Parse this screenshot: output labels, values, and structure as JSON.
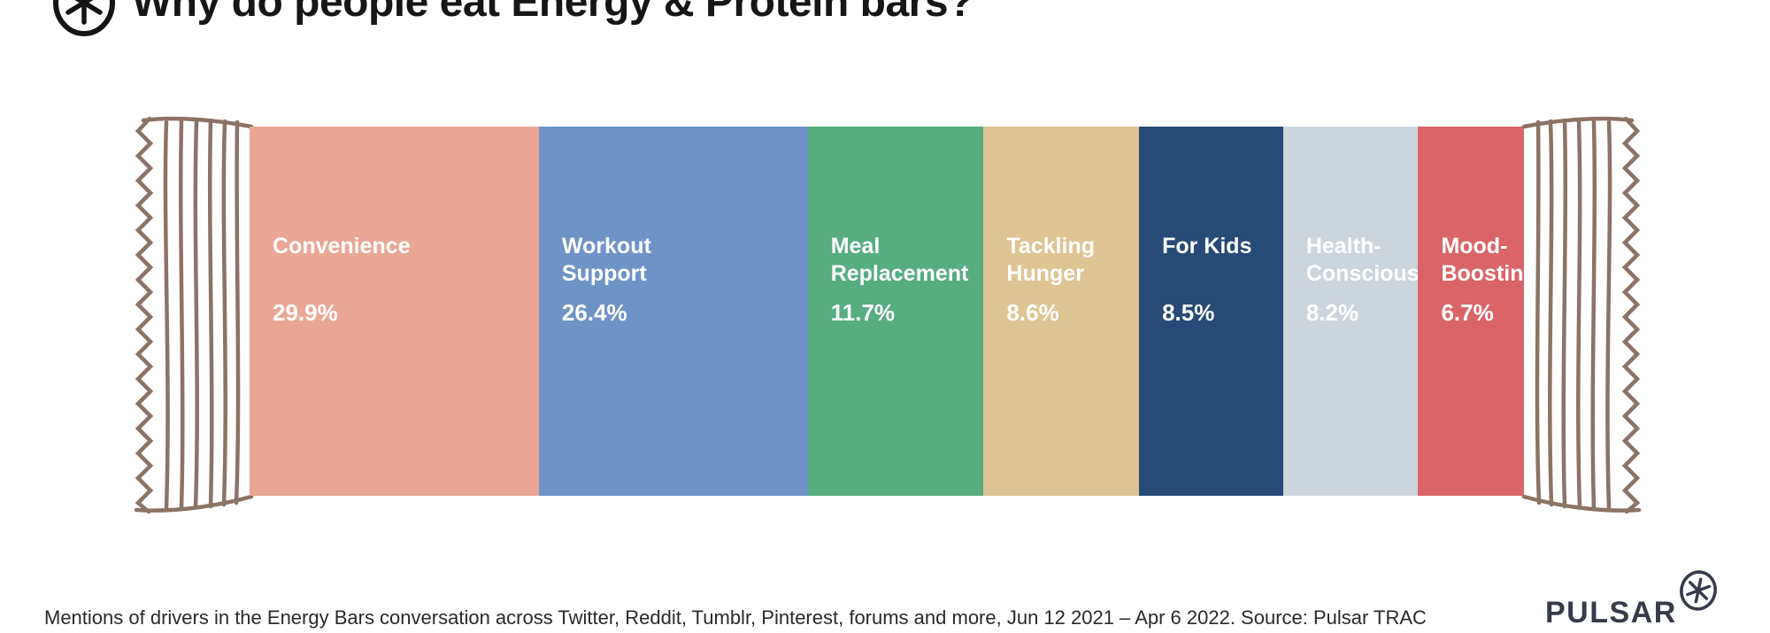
{
  "header": {
    "title": "Why do people eat Energy & Protein bars?"
  },
  "chart_data": {
    "type": "bar",
    "variant": "proportional-horizontal-stacked-wrapper",
    "title": "Why do people eat Energy & Protein bars?",
    "unit": "% of mentions",
    "categories": [
      "Convenience",
      "Workout Support",
      "Meal Replacement",
      "Tackling Hunger",
      "For Kids",
      "Health-Conscious",
      "Mood-Boosting"
    ],
    "values": [
      29.9,
      26.4,
      11.7,
      8.6,
      8.5,
      8.2,
      6.7
    ],
    "segments": [
      {
        "label": "Convenience",
        "label_display": "Convenience",
        "value": 29.9,
        "value_display": "29.9%",
        "color": "#EAA795",
        "width_pct": 22.7
      },
      {
        "label": "Workout Support",
        "label_display": "Workout\nSupport",
        "value": 26.4,
        "value_display": "26.4%",
        "color": "#6F93C7",
        "width_pct": 21.1
      },
      {
        "label": "Meal Replacement",
        "label_display": "Meal\nReplacement",
        "value": 11.7,
        "value_display": "11.7%",
        "color": "#57AC80",
        "width_pct": 13.8
      },
      {
        "label": "Tackling Hunger",
        "label_display": "Tackling\nHunger",
        "value": 8.6,
        "value_display": "8.6%",
        "color": "#DFC494",
        "width_pct": 12.2
      },
      {
        "label": "For Kids",
        "label_display": "For Kids",
        "value": 8.5,
        "value_display": "8.5%",
        "color": "#274A76",
        "width_pct": 11.3
      },
      {
        "label": "Health-Conscious",
        "label_display": "Health-\nConscious",
        "value": 8.2,
        "value_display": "8.2%",
        "color": "#CDD5DC",
        "width_pct": 10.6
      },
      {
        "label": "Mood-Boosting",
        "label_display": "Mood-\nBoosting",
        "value": 6.7,
        "value_display": "6.7%",
        "color": "#D96569",
        "width_pct": 8.3
      }
    ],
    "label_text_color": "#FFFFFF",
    "wrapper_outline_color": "#8B7365",
    "legend": "none",
    "axes": "none",
    "grid": false
  },
  "footer": {
    "caption": "Mentions of drivers in the Energy Bars conversation across Twitter, Reddit, Tumblr, Pinterest, forums and more, Jun 12 2021 – Apr 6 2022. Source: Pulsar TRAC",
    "brand": "PULSAR",
    "brand_color": "#363B49"
  }
}
